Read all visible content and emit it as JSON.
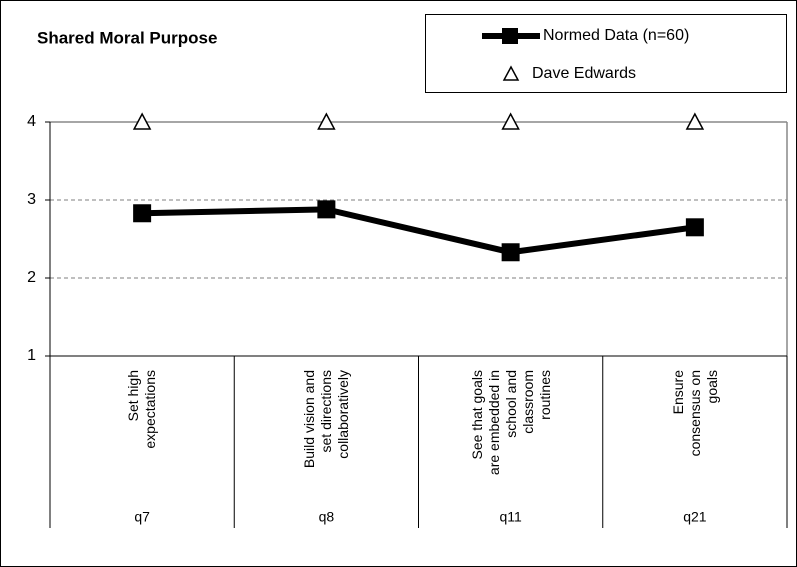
{
  "chart_data": {
    "type": "line",
    "title": "Shared Moral Purpose",
    "categories": [
      "Set high expectations",
      "Build vision and set directions collaboratively",
      "See that goals are embedded in school and classroom routines",
      "Ensure consensus on goals"
    ],
    "category_codes": [
      "q7",
      "q8",
      "q11",
      "q21"
    ],
    "series": [
      {
        "name": "Normed Data (n=60)",
        "color": "#000000",
        "marker": "square",
        "values": [
          2.83,
          2.88,
          2.33,
          2.65
        ]
      },
      {
        "name": "Dave Edwards",
        "color": "#000000",
        "marker": "triangle",
        "values": [
          4,
          4,
          4,
          4
        ]
      }
    ],
    "ylim": [
      1,
      4
    ],
    "yticks": [
      1,
      2,
      3,
      4
    ],
    "grid": true,
    "legend": "top-right"
  }
}
